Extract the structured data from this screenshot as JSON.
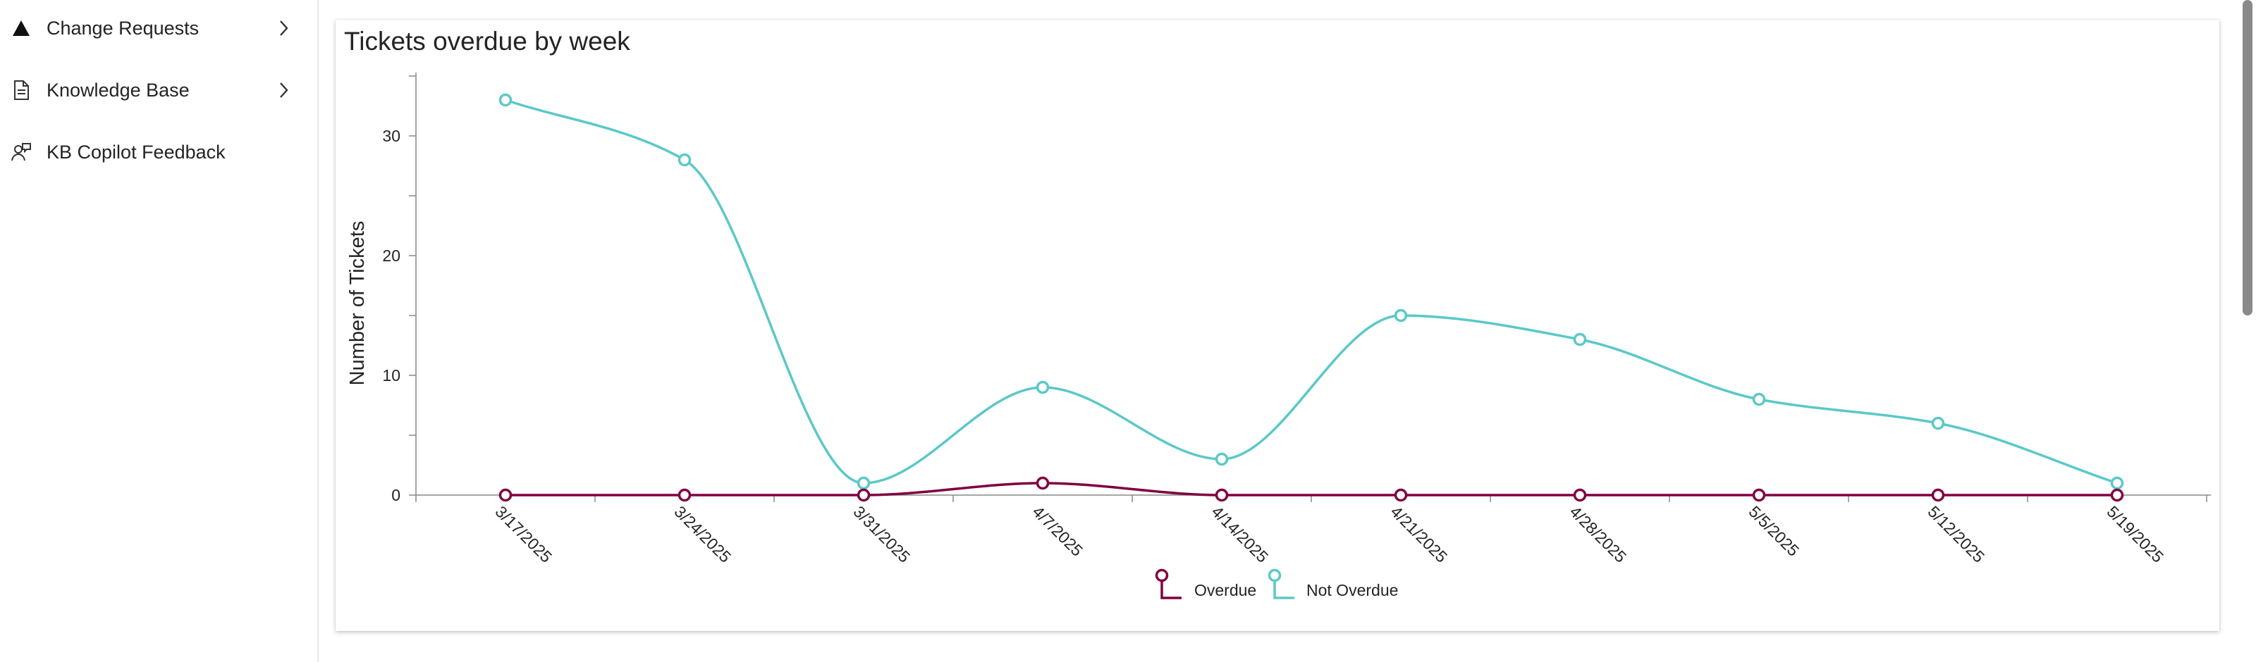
{
  "sidebar": {
    "items": [
      {
        "label": "Change Requests",
        "icon": "triangle-icon",
        "has_chevron": true
      },
      {
        "label": "Knowledge Base",
        "icon": "document-icon",
        "has_chevron": true
      },
      {
        "label": "KB Copilot Feedback",
        "icon": "feedback-person-icon",
        "has_chevron": false
      }
    ]
  },
  "colors": {
    "overdue": "#800040",
    "not_overdue": "#5bc8c8",
    "axis": "#888888",
    "text": "#242424"
  },
  "chart_data": {
    "type": "line",
    "title": "Tickets overdue by week",
    "xlabel": "",
    "ylabel": "Number of Tickets",
    "ylim": [
      0,
      35
    ],
    "yticks": [
      0,
      10,
      20,
      30
    ],
    "categories": [
      "3/17/2025",
      "3/24/2025",
      "3/31/2025",
      "4/7/2025",
      "4/14/2025",
      "4/21/2025",
      "4/28/2025",
      "5/5/2025",
      "5/12/2025",
      "5/19/2025"
    ],
    "series": [
      {
        "name": "Overdue",
        "color": "#800040",
        "values": [
          0,
          0,
          0,
          1,
          0,
          0,
          0,
          0,
          0,
          0
        ]
      },
      {
        "name": "Not Overdue",
        "color": "#5bc8c8",
        "values": [
          33,
          28,
          1,
          9,
          3,
          15,
          13,
          8,
          6,
          1
        ]
      }
    ],
    "legend_position": "bottom-center",
    "grid": false,
    "curve": "smooth"
  }
}
